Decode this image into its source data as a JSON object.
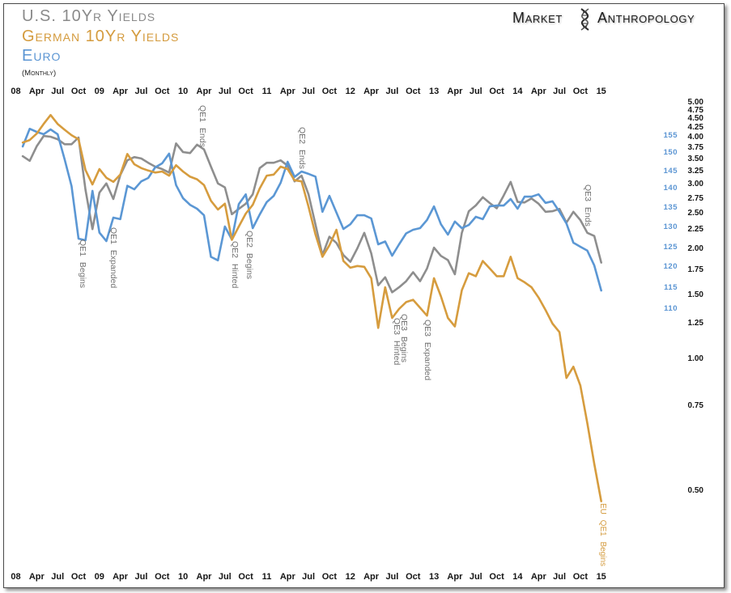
{
  "header": {
    "title_lines": [
      "U.S. 10Yr Yields",
      "German 10Yr Yields",
      "Euro"
    ],
    "subtitle": "(Monthly)"
  },
  "logo": {
    "left_word": "Market",
    "right_word": "Anthropology",
    "icon": "dna-icon"
  },
  "colors": {
    "us_10yr": "#8e8e8e",
    "german_10yr": "#d69c3e",
    "euro": "#5b97d4",
    "annotation": "#6f6f6f"
  },
  "chart_data": {
    "type": "line",
    "title": "U.S. 10Yr Yields / German 10Yr Yields / Euro",
    "subtitle": "(Monthly)",
    "xlabel": "",
    "ylabel": "",
    "grid": false,
    "legend": "top-left (colored title text)",
    "x": [
      "2008-02",
      "2008-03",
      "2008-04",
      "2008-05",
      "2008-06",
      "2008-07",
      "2008-08",
      "2008-09",
      "2008-10",
      "2008-11",
      "2008-12",
      "2009-01",
      "2009-02",
      "2009-03",
      "2009-04",
      "2009-05",
      "2009-06",
      "2009-07",
      "2009-08",
      "2009-09",
      "2009-10",
      "2009-11",
      "2009-12",
      "2010-01",
      "2010-02",
      "2010-03",
      "2010-04",
      "2010-05",
      "2010-06",
      "2010-07",
      "2010-08",
      "2010-09",
      "2010-10",
      "2010-11",
      "2010-12",
      "2011-01",
      "2011-02",
      "2011-03",
      "2011-04",
      "2011-05",
      "2011-06",
      "2011-07",
      "2011-08",
      "2011-09",
      "2011-10",
      "2011-11",
      "2011-12",
      "2012-01",
      "2012-02",
      "2012-03",
      "2012-04",
      "2012-05",
      "2012-06",
      "2012-07",
      "2012-08",
      "2012-09",
      "2012-10",
      "2012-11",
      "2012-12",
      "2013-01",
      "2013-02",
      "2013-03",
      "2013-04",
      "2013-05",
      "2013-06",
      "2013-07",
      "2013-08",
      "2013-09",
      "2013-10",
      "2013-11",
      "2013-12",
      "2014-01",
      "2014-02",
      "2014-03",
      "2014-04",
      "2014-05",
      "2014-06",
      "2014-07",
      "2014-08",
      "2014-09",
      "2014-10",
      "2014-11",
      "2014-12",
      "2015-01"
    ],
    "series": [
      {
        "name": "U.S. 10Yr Yields",
        "axis": "yield",
        "color": "#8e8e8e",
        "values": [
          3.57,
          3.47,
          3.79,
          4.04,
          4.02,
          3.96,
          3.84,
          3.84,
          4.0,
          2.91,
          2.26,
          2.86,
          3.02,
          2.75,
          3.18,
          3.48,
          3.55,
          3.52,
          3.43,
          3.35,
          3.3,
          3.23,
          3.86,
          3.66,
          3.64,
          3.83,
          3.72,
          3.35,
          3.02,
          2.95,
          2.49,
          2.58,
          2.67,
          2.83,
          3.32,
          3.43,
          3.43,
          3.48,
          3.37,
          3.06,
          3.17,
          2.83,
          2.33,
          1.93,
          2.16,
          2.08,
          1.93,
          1.85,
          2.01,
          2.21,
          1.95,
          1.6,
          1.68,
          1.53,
          1.58,
          1.64,
          1.73,
          1.64,
          1.77,
          2.02,
          1.92,
          1.87,
          1.71,
          2.21,
          2.54,
          2.64,
          2.78,
          2.68,
          2.59,
          2.81,
          3.05,
          2.7,
          2.69,
          2.76,
          2.67,
          2.53,
          2.54,
          2.58,
          2.36,
          2.53,
          2.4,
          2.21,
          2.17,
          1.84
        ]
      },
      {
        "name": "Euro",
        "axis": "euro",
        "color": "#5b97d4",
        "values": [
          151.9,
          157.1,
          156.2,
          155.5,
          156.9,
          155.5,
          148.3,
          140.7,
          127.2,
          126.8,
          139.4,
          128.7,
          126.6,
          132.5,
          132.1,
          140.8,
          139.8,
          142.1,
          143.1,
          146.1,
          147.2,
          149.8,
          141.0,
          137.5,
          135.8,
          134.8,
          133.1,
          122.6,
          121.7,
          130.2,
          127.0,
          136.0,
          138.5,
          129.8,
          133.3,
          136.5,
          138.1,
          141.7,
          147.6,
          143.4,
          145.0,
          144.3,
          143.5,
          134.0,
          138.1,
          133.8,
          129.6,
          130.8,
          133.1,
          133.1,
          132.3,
          125.8,
          126.5,
          122.9,
          125.8,
          128.5,
          129.4,
          129.8,
          131.9,
          135.4,
          130.8,
          128.2,
          131.5,
          129.8,
          130.6,
          132.7,
          132.1,
          135.4,
          135.6,
          135.6,
          137.3,
          134.8,
          137.9,
          137.9,
          138.5,
          136.3,
          136.7,
          134.0,
          131.0,
          126.2,
          125.2,
          124.2,
          120.4,
          114.4
        ]
      },
      {
        "name": "German 10Yr Yields",
        "axis": "yield",
        "color": "#d69c3e",
        "values": [
          3.88,
          3.94,
          4.1,
          4.36,
          4.62,
          4.36,
          4.2,
          4.06,
          3.96,
          3.28,
          3.0,
          3.3,
          3.13,
          3.05,
          3.19,
          3.62,
          3.4,
          3.32,
          3.27,
          3.23,
          3.25,
          3.17,
          3.38,
          3.25,
          3.15,
          3.1,
          2.99,
          2.72,
          2.57,
          2.67,
          2.12,
          2.3,
          2.5,
          2.65,
          2.93,
          3.17,
          3.19,
          3.35,
          3.3,
          3.08,
          3.06,
          2.62,
          2.19,
          1.91,
          2.05,
          2.25,
          1.86,
          1.78,
          1.8,
          1.79,
          1.67,
          1.22,
          1.58,
          1.3,
          1.38,
          1.44,
          1.46,
          1.39,
          1.32,
          1.67,
          1.49,
          1.3,
          1.23,
          1.55,
          1.72,
          1.69,
          1.86,
          1.77,
          1.69,
          1.69,
          1.91,
          1.67,
          1.63,
          1.58,
          1.48,
          1.37,
          1.25,
          1.19,
          0.9,
          0.96,
          0.86,
          0.7,
          0.58,
          0.47
        ]
      }
    ],
    "x_ticks": [
      {
        "label": "08",
        "month": "2008-01"
      },
      {
        "label": "Apr",
        "month": "2008-04"
      },
      {
        "label": "Jul",
        "month": "2008-07"
      },
      {
        "label": "Oct",
        "month": "2008-10"
      },
      {
        "label": "09",
        "month": "2009-01"
      },
      {
        "label": "Apr",
        "month": "2009-04"
      },
      {
        "label": "Jul",
        "month": "2009-07"
      },
      {
        "label": "Oct",
        "month": "2009-10"
      },
      {
        "label": "10",
        "month": "2010-01"
      },
      {
        "label": "Apr",
        "month": "2010-04"
      },
      {
        "label": "Jul",
        "month": "2010-07"
      },
      {
        "label": "Oct",
        "month": "2010-10"
      },
      {
        "label": "11",
        "month": "2011-01"
      },
      {
        "label": "Apr",
        "month": "2011-04"
      },
      {
        "label": "Jul",
        "month": "2011-07"
      },
      {
        "label": "Oct",
        "month": "2011-10"
      },
      {
        "label": "12",
        "month": "2012-01"
      },
      {
        "label": "Apr",
        "month": "2012-04"
      },
      {
        "label": "Jul",
        "month": "2012-07"
      },
      {
        "label": "Oct",
        "month": "2012-10"
      },
      {
        "label": "13",
        "month": "2013-01"
      },
      {
        "label": "Apr",
        "month": "2013-04"
      },
      {
        "label": "Jul",
        "month": "2013-07"
      },
      {
        "label": "Oct",
        "month": "2013-10"
      },
      {
        "label": "14",
        "month": "2014-01"
      },
      {
        "label": "Apr",
        "month": "2014-04"
      },
      {
        "label": "Jul",
        "month": "2014-07"
      },
      {
        "label": "Oct",
        "month": "2014-10"
      },
      {
        "label": "15",
        "month": "2015-01"
      }
    ],
    "x_range": [
      "2008-01",
      "2015-01"
    ],
    "y_axis_yield": {
      "side": "right",
      "scale": "log",
      "range": [
        0.45,
        5.0
      ],
      "ticks": [
        "5.00",
        "4.75",
        "4.50",
        "4.25",
        "4.00",
        "3.75",
        "3.50",
        "3.25",
        "3.00",
        "2.75",
        "2.50",
        "2.25",
        "2.00",
        "1.75",
        "1.50",
        "1.25",
        "1.00",
        "0.75",
        "0.50"
      ]
    },
    "y_axis_euro": {
      "side": "right (inner)",
      "range": [
        110,
        158
      ],
      "ticks": [
        "155",
        "150",
        "145",
        "140",
        "135",
        "130",
        "125",
        "120",
        "115",
        "110"
      ]
    },
    "annotations": [
      {
        "text": "QE1 Begins",
        "month": "2008-11"
      },
      {
        "text": "QE1 Expanded",
        "month": "2009-03"
      },
      {
        "text": "QE1 Ends",
        "month": "2010-03"
      },
      {
        "text": "QE2 Hinted",
        "month": "2010-08"
      },
      {
        "text": "QE2 Begins",
        "month": "2010-11"
      },
      {
        "text": "QE2 Ends",
        "month": "2011-06"
      },
      {
        "text": "QE3 Hinted",
        "month": "2012-08"
      },
      {
        "text": "QE3 Begins",
        "month": "2012-09"
      },
      {
        "text": "QE3 Expanded",
        "month": "2012-12"
      },
      {
        "text": "QE3 Ends",
        "month": "2014-10"
      },
      {
        "text": "EU QE1 Begins",
        "month": "2015-01"
      }
    ]
  }
}
